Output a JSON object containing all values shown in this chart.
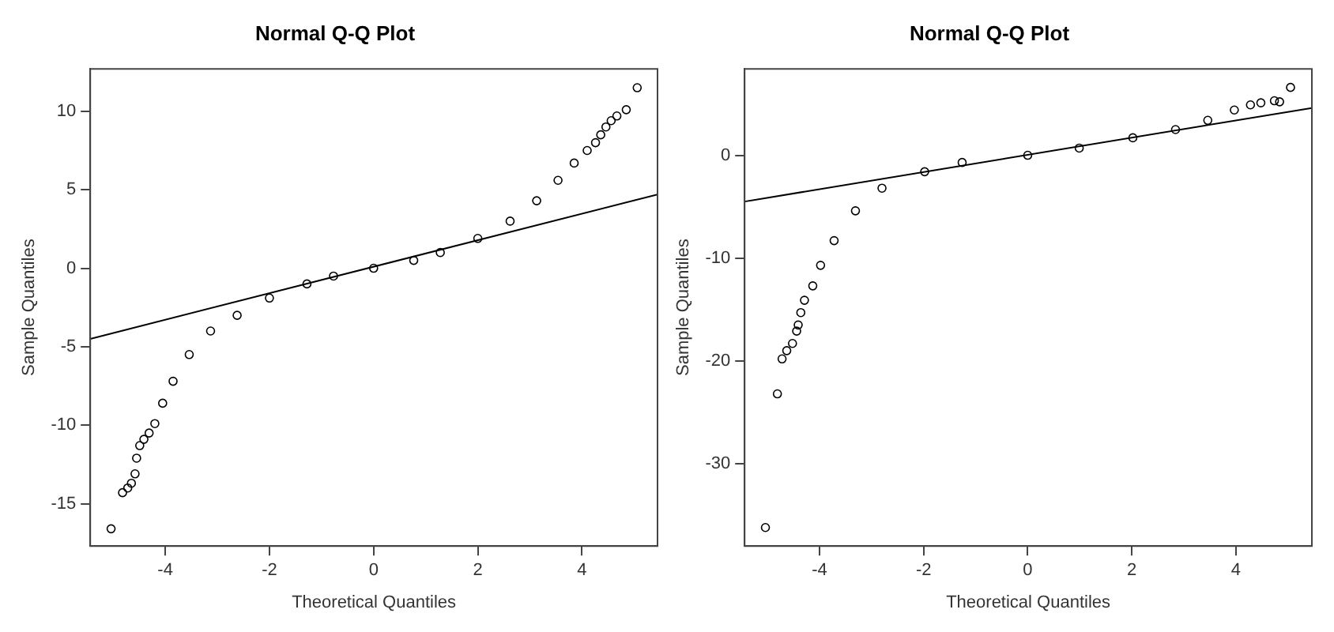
{
  "chart_data": [
    {
      "type": "scatter",
      "title": "Normal Q-Q Plot",
      "xlabel": "Theoretical Quantiles",
      "ylabel": "Sample Quantiles",
      "xlim": [
        -5.44,
        5.45
      ],
      "ylim": [
        -17.7,
        12.7
      ],
      "xticks": [
        -4,
        -2,
        0,
        2,
        4
      ],
      "yticks": [
        -15,
        -10,
        -5,
        0,
        5,
        10
      ],
      "grid": false,
      "marker": "circle",
      "series": [
        {
          "type": "scatter",
          "color": "#000000",
          "x": [
            -5.04,
            -4.82,
            -4.72,
            -4.65,
            -4.58,
            -4.55,
            -4.49,
            -4.41,
            -4.31,
            -4.2,
            -4.05,
            -3.85,
            -3.54,
            -3.13,
            -2.62,
            -2.0,
            -1.28,
            -0.77,
            0,
            0.77,
            1.28,
            2.0,
            2.62,
            3.13,
            3.54,
            3.85,
            4.1,
            4.26,
            4.36,
            4.46,
            4.56,
            4.67,
            4.85,
            5.06
          ],
          "values": [
            -16.6,
            -14.3,
            -14.0,
            -13.7,
            -13.1,
            -12.1,
            -11.3,
            -10.9,
            -10.5,
            -9.9,
            -8.6,
            -7.2,
            -5.5,
            -4.0,
            -3.0,
            -1.9,
            -1.0,
            -0.5,
            0,
            0.5,
            1.0,
            1.9,
            3.0,
            4.3,
            5.6,
            6.7,
            7.5,
            8.0,
            8.5,
            9.0,
            9.4,
            9.7,
            10.1,
            11.5
          ]
        },
        {
          "type": "line",
          "color": "#000000",
          "marker": "none",
          "x": [
            -5.44,
            5.45
          ],
          "values": [
            -4.5,
            4.7
          ]
        }
      ]
    },
    {
      "type": "scatter",
      "title": "Normal Q-Q Plot",
      "xlabel": "Theoretical Quantiles",
      "ylabel": "Sample Quantiles",
      "xlim": [
        -5.44,
        5.46
      ],
      "ylim": [
        -38,
        8.4
      ],
      "xticks": [
        -4,
        -2,
        0,
        2,
        4
      ],
      "yticks": [
        -30,
        -20,
        -10,
        0
      ],
      "grid": false,
      "marker": "circle",
      "series": [
        {
          "type": "scatter",
          "color": "#000000",
          "x": [
            -5.04,
            -4.81,
            -4.72,
            -4.63,
            -4.52,
            -4.44,
            -4.41,
            -4.36,
            -4.29,
            -4.13,
            -3.98,
            -3.72,
            -3.31,
            -2.8,
            -1.98,
            -1.26,
            0,
            0.99,
            2.02,
            2.84,
            3.46,
            3.97,
            4.28,
            4.48,
            4.74,
            4.84,
            5.05
          ],
          "values": [
            -36.2,
            -23.2,
            -19.8,
            -19.0,
            -18.3,
            -17.1,
            -16.5,
            -15.3,
            -14.1,
            -12.7,
            -10.7,
            -8.3,
            -5.4,
            -3.2,
            -1.6,
            -0.7,
            0,
            0.7,
            1.7,
            2.5,
            3.4,
            4.4,
            4.9,
            5.1,
            5.3,
            5.2,
            6.6
          ]
        },
        {
          "type": "line",
          "color": "#000000",
          "marker": "none",
          "x": [
            -5.44,
            5.46
          ],
          "values": [
            -4.5,
            4.6
          ]
        }
      ]
    }
  ]
}
